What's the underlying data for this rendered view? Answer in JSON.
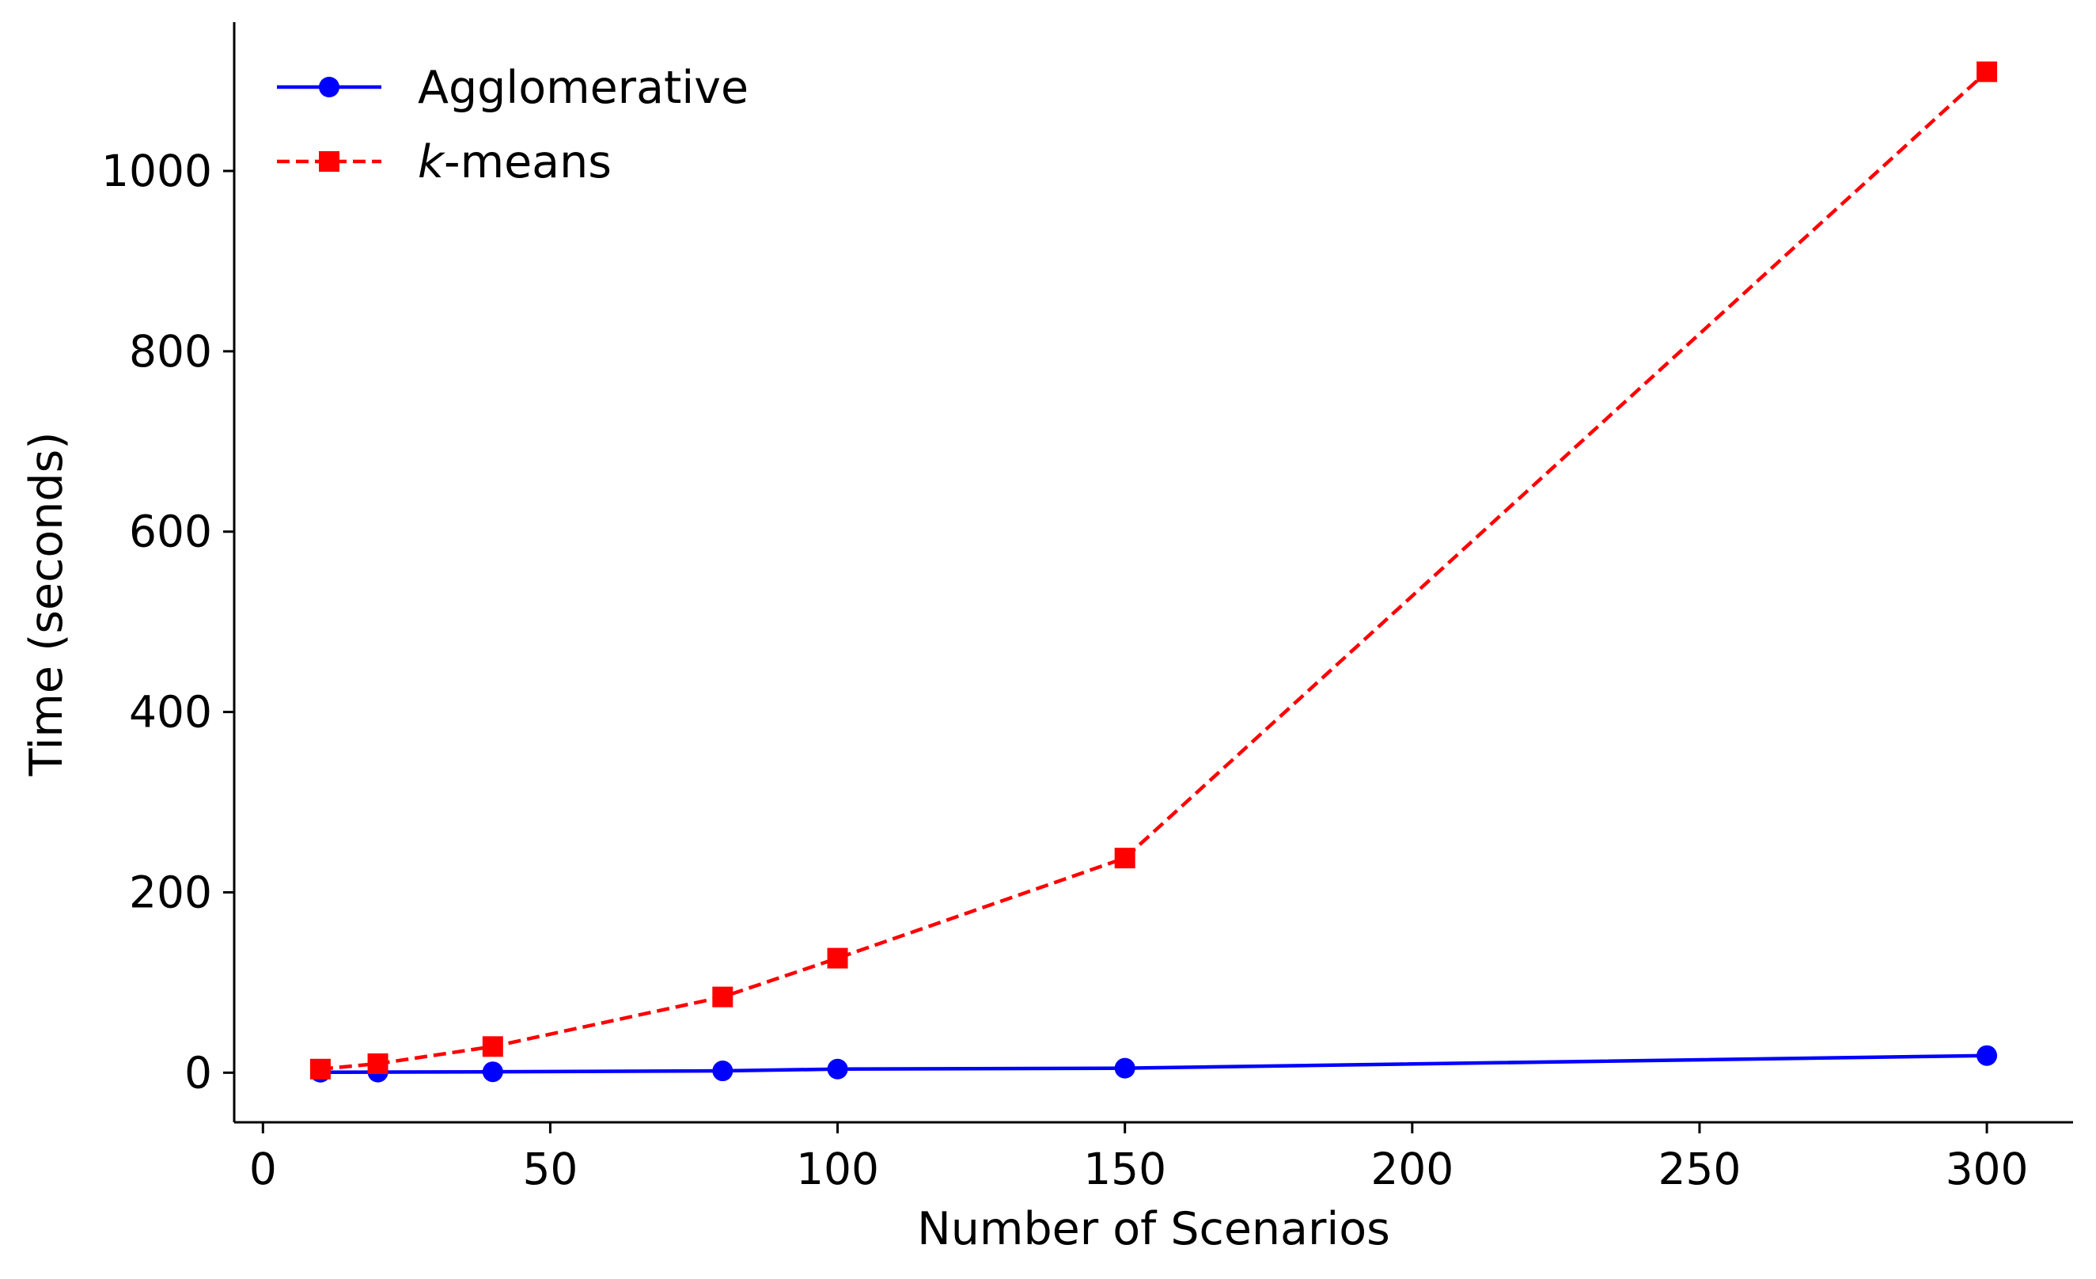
{
  "chart_data": {
    "type": "line",
    "title": "",
    "xlabel": "Number of Scenarios",
    "ylabel": "Time (seconds)",
    "xlim": [
      -5,
      315
    ],
    "ylim": [
      -55,
      1165
    ],
    "xticks": [
      0,
      50,
      100,
      150,
      200,
      250,
      300
    ],
    "yticks": [
      0,
      200,
      400,
      600,
      800,
      1000
    ],
    "xtick_labels": [
      "0",
      "50",
      "100",
      "150",
      "200",
      "250",
      "300"
    ],
    "ytick_labels": [
      "0",
      "200",
      "400",
      "600",
      "800",
      "1000"
    ],
    "grid": false,
    "legend_position": "top-left",
    "x": [
      10,
      20,
      40,
      80,
      100,
      150,
      300
    ],
    "series": [
      {
        "name": "Agglomerative",
        "values": [
          0.5,
          0.6,
          1,
          2,
          4,
          5,
          19
        ],
        "color": "#0000ff",
        "line_style": "solid",
        "marker": "circle"
      },
      {
        "name": "-means",
        "name_prefix_italic": "k",
        "values": [
          4,
          10,
          29,
          84,
          127,
          238,
          1110
        ],
        "color": "#ff0000",
        "line_style": "dashed",
        "marker": "square"
      }
    ]
  }
}
